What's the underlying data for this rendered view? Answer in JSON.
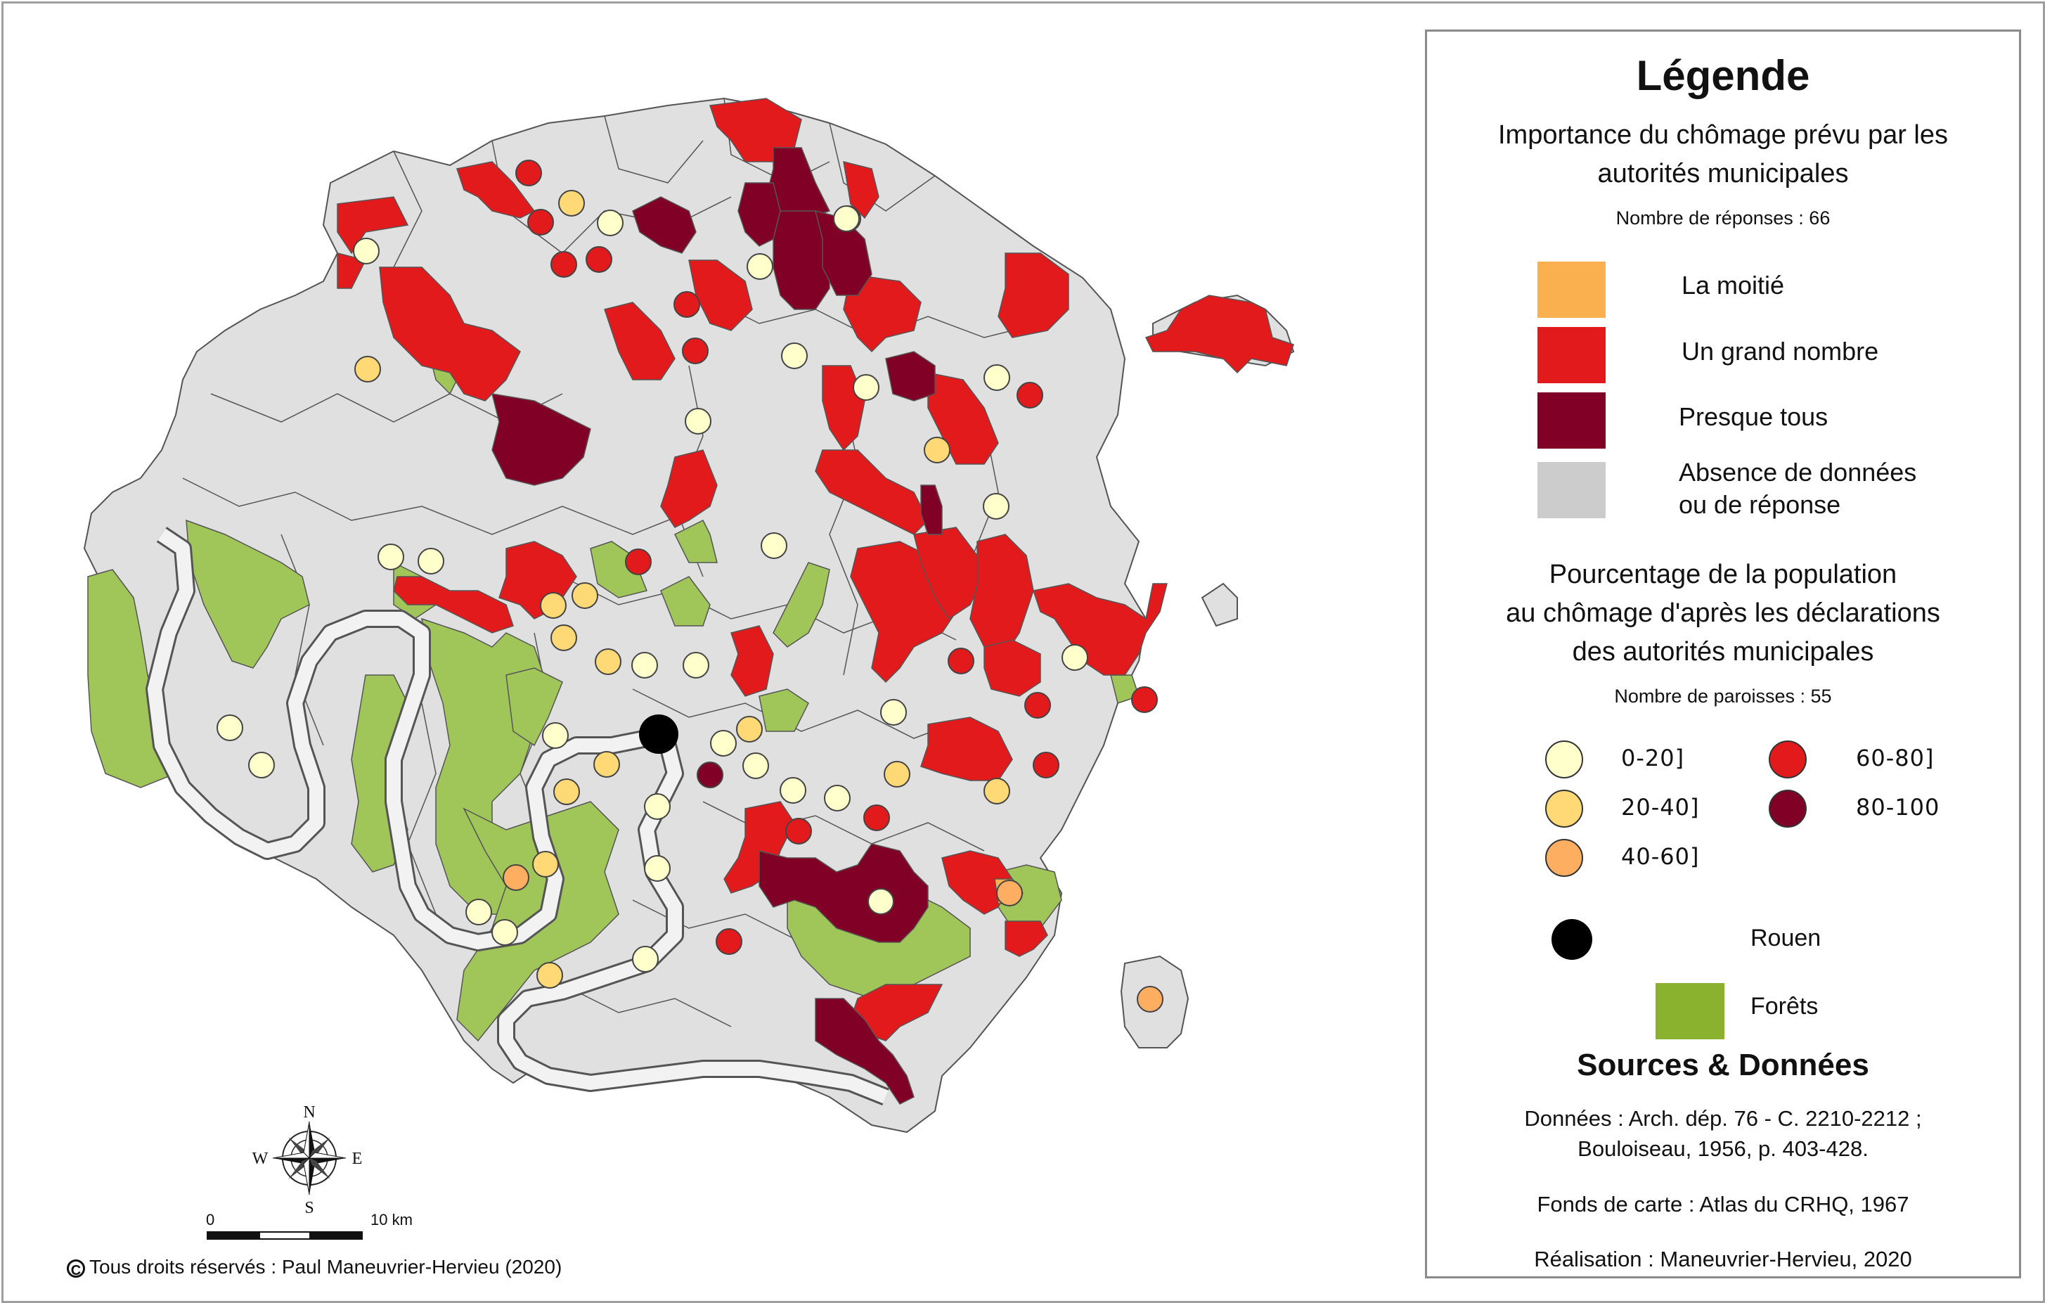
{
  "legend": {
    "title": "Légende",
    "section1_title_line1": "Importance du chômage prévu par les",
    "section1_title_line2": "autorités municipales",
    "section1_count": "Nombre de réponses : 66",
    "categories": [
      {
        "label": "La moitié",
        "color": "#fbb04f"
      },
      {
        "label": "Un grand nombre",
        "color": "#e31a1c"
      },
      {
        "label": "Presque tous",
        "color": "#800026"
      },
      {
        "label_line1": "Absence de données",
        "label_line2": "ou de réponse",
        "color": "#cccccc"
      }
    ],
    "section2_title_line1": "Pourcentage de la population",
    "section2_title_line2": "au chômage d'après les déclarations",
    "section2_title_line3": "des autorités municipales",
    "section2_count": "Nombre de paroisses : 55",
    "classes": [
      {
        "label": "0-20]",
        "color": "#ffffcc"
      },
      {
        "label": "20-40]",
        "color": "#fed976"
      },
      {
        "label": "40-60]",
        "color": "#fdae61"
      },
      {
        "label": "60-80]",
        "color": "#e31a1c"
      },
      {
        "label": "80-100",
        "color": "#800026"
      }
    ],
    "rouen_label": "Rouen",
    "forest_label": "Forêts",
    "forest_color": "#8bb22e",
    "sources_title": "Sources & Données",
    "sources_line1": "Données : Arch. dép. 76 - C. 2210-2212 ;",
    "sources_line2": "Bouloiseau, 1956, p. 403-428.",
    "sources_line3": "Fonds de carte : Atlas du CRHQ, 1967",
    "sources_line4": "Réalisation : Maneuvrier-Hervieu, 2020"
  },
  "compass": {
    "n": "N",
    "s": "S",
    "e": "E",
    "w": "W"
  },
  "scale": {
    "start": "0",
    "end": "10 km"
  },
  "credit": "Tous droits réservés : Paul Maneuvrier-Hervieu (2020)",
  "credit_symbol": "C"
}
